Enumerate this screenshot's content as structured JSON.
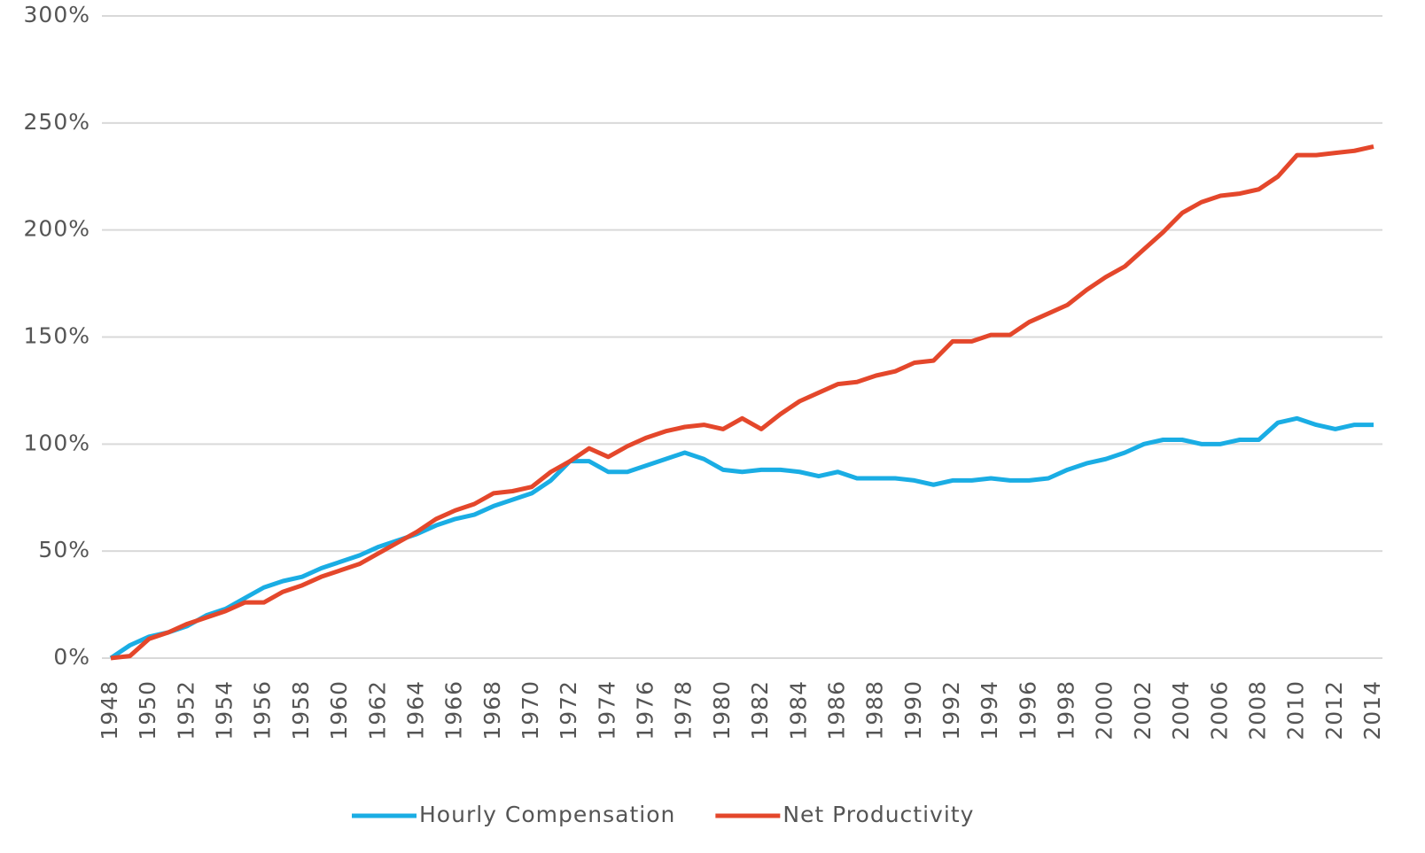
{
  "chart_data": {
    "type": "line",
    "x": [
      1948,
      1949,
      1950,
      1951,
      1952,
      1953,
      1954,
      1955,
      1956,
      1957,
      1958,
      1959,
      1960,
      1961,
      1962,
      1963,
      1964,
      1965,
      1966,
      1967,
      1968,
      1969,
      1970,
      1971,
      1972,
      1973,
      1974,
      1975,
      1976,
      1977,
      1978,
      1979,
      1980,
      1981,
      1982,
      1983,
      1984,
      1985,
      1986,
      1987,
      1988,
      1989,
      1990,
      1991,
      1992,
      1993,
      1994,
      1995,
      1996,
      1997,
      1998,
      1999,
      2000,
      2001,
      2002,
      2003,
      2004,
      2005,
      2006,
      2007,
      2008,
      2009,
      2010,
      2011,
      2012,
      2013,
      2014
    ],
    "xlim": [
      1948,
      2014
    ],
    "xticks": [
      1948,
      1950,
      1952,
      1954,
      1956,
      1958,
      1960,
      1962,
      1964,
      1966,
      1968,
      1970,
      1972,
      1974,
      1976,
      1978,
      1980,
      1982,
      1984,
      1986,
      1988,
      1990,
      1992,
      1994,
      1996,
      1998,
      2000,
      2002,
      2004,
      2006,
      2008,
      2010,
      2012,
      2014
    ],
    "ylim": [
      0,
      300
    ],
    "yticks": [
      {
        "value": 0,
        "label": "0%"
      },
      {
        "value": 50,
        "label": "50%"
      },
      {
        "value": 100,
        "label": "100%"
      },
      {
        "value": 150,
        "label": "150%"
      },
      {
        "value": 200,
        "label": "200%"
      },
      {
        "value": 250,
        "label": "250%"
      },
      {
        "value": 300,
        "label": "300%"
      }
    ],
    "grid": true,
    "legend": "bottom",
    "series": [
      {
        "name": "Hourly Compensation",
        "color": "#1aade4",
        "values": [
          0,
          6,
          10,
          12,
          15,
          20,
          23,
          28,
          33,
          36,
          38,
          42,
          45,
          48,
          52,
          55,
          58,
          62,
          65,
          67,
          71,
          74,
          77,
          83,
          92,
          92,
          87,
          87,
          90,
          93,
          96,
          93,
          88,
          87,
          88,
          88,
          87,
          85,
          87,
          84,
          84,
          84,
          83,
          81,
          83,
          83,
          84,
          83,
          83,
          84,
          88,
          91,
          93,
          96,
          100,
          102,
          102,
          100,
          100,
          102,
          102,
          110,
          112,
          109,
          107,
          109,
          109
        ]
      },
      {
        "name": "Net Productivity",
        "color": "#e4472b",
        "values": [
          0,
          1,
          9,
          12,
          16,
          19,
          22,
          26,
          26,
          31,
          34,
          38,
          41,
          44,
          49,
          54,
          59,
          65,
          69,
          72,
          77,
          78,
          80,
          87,
          92,
          98,
          94,
          99,
          103,
          106,
          108,
          109,
          107,
          112,
          107,
          114,
          120,
          124,
          128,
          129,
          132,
          134,
          138,
          139,
          148,
          148,
          151,
          151,
          157,
          161,
          165,
          172,
          178,
          183,
          191,
          199,
          208,
          213,
          216,
          217,
          219,
          225,
          235,
          235,
          236,
          237,
          239
        ]
      }
    ]
  }
}
